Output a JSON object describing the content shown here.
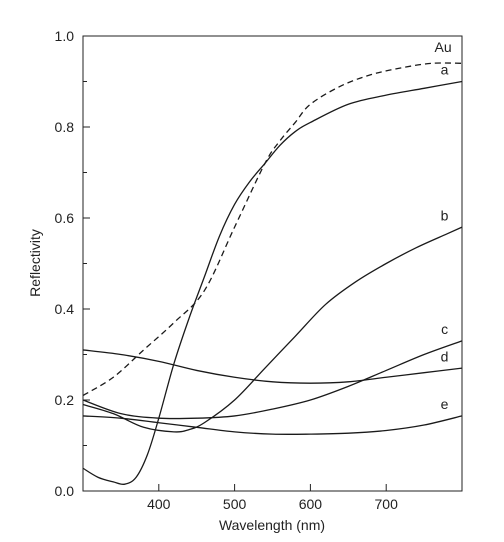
{
  "chart_data": {
    "type": "line",
    "xlabel": "Wavelength (nm)",
    "ylabel": "Reflectivity",
    "xlim": [
      300,
      800
    ],
    "ylim": [
      0.0,
      1.0
    ],
    "x_ticks": [
      400,
      500,
      600,
      700
    ],
    "x_tick_labels": [
      "400",
      "500",
      "600",
      "700"
    ],
    "y_ticks": [
      0.0,
      0.2,
      0.4,
      0.6,
      0.8,
      1.0
    ],
    "y_tick_labels": [
      "0.0",
      "0.2",
      "0.4",
      "0.6",
      "0.8",
      "1.0"
    ],
    "y_minor_ticks": [
      0.1,
      0.3,
      0.5,
      0.7,
      0.9
    ],
    "grid": false,
    "series": [
      {
        "name": "Au",
        "style": "dashed",
        "x": [
          300,
          340,
          380,
          420,
          460,
          500,
          540,
          560,
          580,
          600,
          640,
          680,
          720,
          760,
          800
        ],
        "y": [
          0.21,
          0.25,
          0.31,
          0.37,
          0.44,
          0.58,
          0.72,
          0.77,
          0.81,
          0.85,
          0.89,
          0.915,
          0.93,
          0.94,
          0.94
        ]
      },
      {
        "name": "a",
        "style": "solid",
        "x": [
          300,
          320,
          340,
          355,
          370,
          385,
          400,
          420,
          440,
          460,
          480,
          500,
          520,
          540,
          560,
          580,
          600,
          650,
          700,
          750,
          800
        ],
        "y": [
          0.05,
          0.03,
          0.02,
          0.015,
          0.03,
          0.08,
          0.16,
          0.28,
          0.38,
          0.47,
          0.56,
          0.63,
          0.68,
          0.72,
          0.76,
          0.79,
          0.81,
          0.85,
          0.87,
          0.885,
          0.9
        ]
      },
      {
        "name": "b",
        "style": "solid",
        "x": [
          300,
          340,
          380,
          420,
          440,
          460,
          500,
          540,
          580,
          620,
          660,
          700,
          740,
          780,
          800
        ],
        "y": [
          0.19,
          0.17,
          0.14,
          0.13,
          0.135,
          0.15,
          0.2,
          0.27,
          0.34,
          0.41,
          0.46,
          0.5,
          0.535,
          0.565,
          0.58
        ]
      },
      {
        "name": "c",
        "style": "solid",
        "x": [
          300,
          350,
          400,
          450,
          500,
          550,
          600,
          650,
          700,
          750,
          800
        ],
        "y": [
          0.2,
          0.17,
          0.16,
          0.16,
          0.165,
          0.18,
          0.2,
          0.23,
          0.265,
          0.3,
          0.33
        ]
      },
      {
        "name": "d",
        "style": "solid",
        "x": [
          300,
          350,
          400,
          450,
          500,
          550,
          600,
          650,
          700,
          750,
          800
        ],
        "y": [
          0.31,
          0.3,
          0.285,
          0.265,
          0.25,
          0.24,
          0.237,
          0.24,
          0.25,
          0.26,
          0.27
        ]
      },
      {
        "name": "e",
        "style": "solid",
        "x": [
          300,
          350,
          400,
          450,
          500,
          550,
          600,
          650,
          700,
          750,
          800
        ],
        "y": [
          0.165,
          0.16,
          0.15,
          0.14,
          0.13,
          0.125,
          0.125,
          0.127,
          0.133,
          0.145,
          0.165
        ]
      }
    ]
  }
}
